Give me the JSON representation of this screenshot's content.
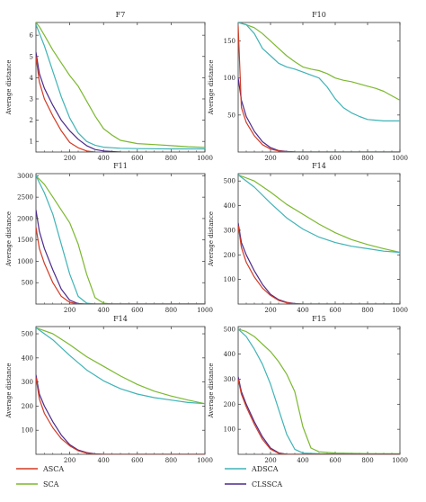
{
  "chart_data": [
    {
      "type": "line",
      "title": "F7",
      "ylabel": "Average distance",
      "xlim": [
        0,
        1000
      ],
      "ylim": [
        0.5,
        6.6
      ],
      "xticks": [
        200,
        400,
        600,
        800,
        1000
      ],
      "xtick_labels": [
        "200",
        "400",
        "600",
        "800",
        "1000"
      ],
      "yticks": [
        1,
        2,
        3,
        4,
        5,
        6
      ],
      "ytick_labels": [
        "1",
        "2",
        "3",
        "4",
        "5",
        "6"
      ],
      "series": [
        {
          "name": "ASCA",
          "x": [
            0,
            20,
            50,
            100,
            150,
            200,
            250,
            300,
            350,
            400,
            500,
            600,
            800,
            1000
          ],
          "y": [
            5.0,
            3.8,
            3.0,
            2.2,
            1.5,
            0.95,
            0.7,
            0.55,
            0.5,
            0.45,
            0.42,
            0.41,
            0.4,
            0.4
          ]
        },
        {
          "name": "SCA",
          "x": [
            0,
            20,
            50,
            100,
            150,
            200,
            250,
            300,
            350,
            400,
            450,
            500,
            600,
            700,
            800,
            900,
            1000
          ],
          "y": [
            6.6,
            6.4,
            6.0,
            5.3,
            4.7,
            4.1,
            3.6,
            2.9,
            2.2,
            1.6,
            1.3,
            1.05,
            0.9,
            0.85,
            0.8,
            0.75,
            0.72
          ]
        },
        {
          "name": "ADSCA",
          "x": [
            0,
            20,
            50,
            100,
            150,
            200,
            250,
            300,
            350,
            400,
            500,
            600,
            800,
            1000
          ],
          "y": [
            6.5,
            6.1,
            5.5,
            4.3,
            3.1,
            2.1,
            1.4,
            1.0,
            0.82,
            0.73,
            0.68,
            0.66,
            0.65,
            0.65
          ]
        },
        {
          "name": "CLSSCA",
          "x": [
            0,
            20,
            50,
            100,
            150,
            200,
            250,
            300,
            350,
            400,
            500,
            600,
            800,
            1000
          ],
          "y": [
            5.2,
            4.2,
            3.5,
            2.7,
            2.0,
            1.5,
            1.1,
            0.8,
            0.62,
            0.55,
            0.5,
            0.48,
            0.48,
            0.48
          ]
        }
      ]
    },
    {
      "type": "line",
      "title": "F10",
      "ylabel": "Average distance",
      "xlim": [
        0,
        1000
      ],
      "ylim": [
        0,
        175
      ],
      "xticks": [
        200,
        400,
        600,
        800,
        1000
      ],
      "xtick_labels": [
        "200",
        "400",
        "600",
        "800",
        "1000"
      ],
      "yticks": [
        50,
        100,
        150
      ],
      "ytick_labels": [
        "50",
        "100",
        "150"
      ],
      "series": [
        {
          "name": "ASCA",
          "x": [
            0,
            20,
            50,
            100,
            150,
            200,
            250,
            300,
            350,
            1000
          ],
          "y": [
            170,
            60,
            40,
            22,
            10,
            4,
            1.5,
            0.5,
            0,
            0
          ]
        },
        {
          "name": "SCA",
          "x": [
            0,
            50,
            100,
            150,
            200,
            250,
            300,
            350,
            400,
            450,
            500,
            550,
            600,
            650,
            700,
            750,
            800,
            850,
            900,
            950,
            1000
          ],
          "y": [
            175,
            172,
            168,
            160,
            150,
            140,
            130,
            122,
            115,
            112,
            110,
            106,
            100,
            97,
            95,
            92,
            89,
            86,
            82,
            76,
            70
          ]
        },
        {
          "name": "ADSCA",
          "x": [
            0,
            50,
            100,
            150,
            200,
            250,
            300,
            350,
            400,
            450,
            500,
            550,
            600,
            650,
            700,
            750,
            800,
            850,
            900,
            1000
          ],
          "y": [
            175,
            172,
            160,
            140,
            130,
            120,
            115,
            112,
            108,
            104,
            100,
            88,
            72,
            60,
            53,
            48,
            44,
            43,
            42,
            42
          ]
        },
        {
          "name": "CLSSCA",
          "x": [
            0,
            20,
            50,
            100,
            150,
            200,
            250,
            300,
            350,
            400,
            1000
          ],
          "y": [
            100,
            70,
            48,
            28,
            14,
            6,
            2,
            0.8,
            0.2,
            0,
            0
          ]
        }
      ]
    },
    {
      "type": "line",
      "title": "F11",
      "ylabel": "Average distance",
      "xlim": [
        0,
        1000
      ],
      "ylim": [
        0,
        3050
      ],
      "xticks": [
        200,
        400,
        600,
        800,
        1000
      ],
      "xtick_labels": [
        "200",
        "400",
        "600",
        "800",
        "1000"
      ],
      "yticks": [
        500,
        1000,
        1500,
        2000,
        2500,
        3000
      ],
      "ytick_labels": [
        "500",
        "1000",
        "1500",
        "2000",
        "2500",
        "3000"
      ],
      "series": [
        {
          "name": "ASCA",
          "x": [
            0,
            20,
            50,
            100,
            150,
            200,
            250,
            300,
            1000
          ],
          "y": [
            1800,
            1300,
            950,
            500,
            180,
            40,
            5,
            0,
            0
          ]
        },
        {
          "name": "SCA",
          "x": [
            0,
            50,
            100,
            150,
            200,
            250,
            300,
            350,
            400,
            450,
            1000
          ],
          "y": [
            3000,
            2800,
            2500,
            2200,
            1900,
            1400,
            700,
            150,
            20,
            0,
            0
          ]
        },
        {
          "name": "ADSCA",
          "x": [
            0,
            50,
            100,
            150,
            200,
            250,
            300,
            350,
            1000
          ],
          "y": [
            3000,
            2600,
            2100,
            1400,
            700,
            180,
            20,
            0,
            0
          ]
        },
        {
          "name": "CLSSCA",
          "x": [
            0,
            20,
            50,
            100,
            150,
            200,
            250,
            300,
            1000
          ],
          "y": [
            2200,
            1700,
            1300,
            800,
            350,
            90,
            10,
            0,
            0
          ]
        }
      ]
    },
    {
      "type": "line",
      "title": "F14",
      "ylabel": "Average distance",
      "xlim": [
        0,
        1000
      ],
      "ylim": [
        0,
        530
      ],
      "xticks": [
        200,
        400,
        600,
        800,
        1000
      ],
      "xtick_labels": [
        "200",
        "400",
        "600",
        "800",
        "1000"
      ],
      "yticks": [
        100,
        200,
        300,
        400,
        500
      ],
      "ytick_labels": [
        "100",
        "200",
        "300",
        "400",
        "500"
      ],
      "series": [
        {
          "name": "ASCA",
          "x": [
            0,
            20,
            50,
            100,
            150,
            200,
            250,
            300,
            350,
            400,
            1000
          ],
          "y": [
            320,
            230,
            170,
            110,
            65,
            35,
            15,
            5,
            1,
            0,
            0
          ]
        },
        {
          "name": "SCA",
          "x": [
            0,
            100,
            200,
            300,
            400,
            500,
            600,
            700,
            800,
            900,
            1000
          ],
          "y": [
            525,
            500,
            455,
            405,
            365,
            325,
            290,
            262,
            242,
            225,
            210
          ]
        },
        {
          "name": "ADSCA",
          "x": [
            0,
            100,
            200,
            300,
            400,
            500,
            600,
            700,
            800,
            900,
            1000
          ],
          "y": [
            525,
            475,
            410,
            350,
            305,
            272,
            250,
            235,
            225,
            215,
            210
          ]
        },
        {
          "name": "CLSSCA",
          "x": [
            0,
            20,
            50,
            100,
            150,
            200,
            250,
            300,
            350,
            400,
            1000
          ],
          "y": [
            330,
            250,
            200,
            135,
            80,
            40,
            18,
            7,
            2,
            0,
            0
          ]
        }
      ]
    },
    {
      "type": "line",
      "title": "F14",
      "ylabel": "Average distance",
      "xlim": [
        0,
        1000
      ],
      "ylim": [
        0,
        530
      ],
      "xticks": [
        200,
        400,
        600,
        800,
        1000
      ],
      "xtick_labels": [
        "200",
        "400",
        "600",
        "800",
        "1000"
      ],
      "yticks": [
        100,
        200,
        300,
        400,
        500
      ],
      "ytick_labels": [
        "100",
        "200",
        "300",
        "400",
        "500"
      ],
      "series": [
        {
          "name": "ASCA",
          "x": [
            0,
            20,
            50,
            100,
            150,
            200,
            250,
            300,
            350,
            400,
            1000
          ],
          "y": [
            320,
            230,
            170,
            110,
            65,
            35,
            15,
            5,
            1,
            0,
            0
          ]
        },
        {
          "name": "SCA",
          "x": [
            0,
            100,
            200,
            300,
            400,
            500,
            600,
            700,
            800,
            900,
            1000
          ],
          "y": [
            525,
            500,
            455,
            405,
            365,
            325,
            290,
            262,
            242,
            225,
            210
          ]
        },
        {
          "name": "ADSCA",
          "x": [
            0,
            100,
            200,
            300,
            400,
            500,
            600,
            700,
            800,
            900,
            1000
          ],
          "y": [
            525,
            475,
            410,
            350,
            305,
            272,
            250,
            235,
            225,
            215,
            210
          ]
        },
        {
          "name": "CLSSCA",
          "x": [
            0,
            20,
            50,
            100,
            150,
            200,
            250,
            300,
            350,
            400,
            1000
          ],
          "y": [
            330,
            250,
            200,
            135,
            80,
            40,
            18,
            7,
            2,
            0,
            0
          ]
        }
      ]
    },
    {
      "type": "line",
      "title": "F15",
      "ylabel": "Average distance",
      "xlim": [
        0,
        1000
      ],
      "ylim": [
        0,
        510
      ],
      "xticks": [
        200,
        400,
        600,
        800,
        1000
      ],
      "xtick_labels": [
        "200",
        "400",
        "600",
        "800",
        "1000"
      ],
      "yticks": [
        100,
        200,
        300,
        400,
        500
      ],
      "ytick_labels": [
        "100",
        "200",
        "300",
        "400",
        "500"
      ],
      "series": [
        {
          "name": "ASCA",
          "x": [
            0,
            20,
            50,
            100,
            150,
            200,
            250,
            300,
            1000
          ],
          "y": [
            300,
            240,
            190,
            120,
            60,
            20,
            4,
            0,
            0
          ]
        },
        {
          "name": "SCA",
          "x": [
            0,
            50,
            100,
            150,
            200,
            250,
            300,
            350,
            400,
            450,
            500,
            600,
            800,
            1000
          ],
          "y": [
            500,
            490,
            470,
            440,
            410,
            370,
            320,
            250,
            110,
            25,
            10,
            5,
            3,
            2
          ]
        },
        {
          "name": "ADSCA",
          "x": [
            0,
            50,
            100,
            150,
            200,
            250,
            300,
            350,
            400,
            500,
            1000
          ],
          "y": [
            500,
            470,
            420,
            360,
            280,
            180,
            80,
            20,
            5,
            2,
            1
          ]
        },
        {
          "name": "CLSSCA",
          "x": [
            0,
            20,
            50,
            100,
            150,
            200,
            250,
            300,
            1000
          ],
          "y": [
            310,
            250,
            200,
            130,
            70,
            25,
            6,
            0,
            0
          ]
        }
      ]
    }
  ],
  "colors": {
    "ASCA": "#d23a24",
    "SCA": "#7cb82f",
    "ADSCA": "#3fb3b6",
    "CLSSCA": "#4b2a8c"
  },
  "legend": [
    {
      "label": "ASCA",
      "color": "#d23a24"
    },
    {
      "label": "SCA",
      "color": "#7cb82f"
    },
    {
      "label": "ADSCA",
      "color": "#3fb3b6"
    },
    {
      "label": "CLSSCA",
      "color": "#4b2a8c"
    }
  ]
}
